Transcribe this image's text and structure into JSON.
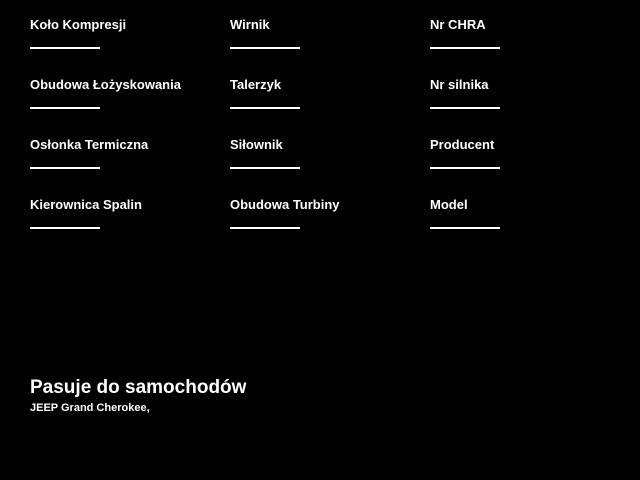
{
  "page": {
    "colors": {
      "background": "#000000",
      "text": "#ffffff",
      "underline": "#ffffff"
    }
  },
  "form": {
    "columns": [
      {
        "fields": [
          {
            "label": "Koło Kompresji",
            "value": ""
          },
          {
            "label": "Obudowa Łożyskowania",
            "value": ""
          },
          {
            "label": "Osłonka Termiczna",
            "value": ""
          },
          {
            "label": "Kierownica Spalin",
            "value": ""
          }
        ]
      },
      {
        "fields": [
          {
            "label": "Wirnik",
            "value": ""
          },
          {
            "label": "Talerzyk",
            "value": ""
          },
          {
            "label": "Siłownik",
            "value": ""
          },
          {
            "label": "Obudowa Turbiny",
            "value": ""
          }
        ]
      },
      {
        "fields": [
          {
            "label": "Nr CHRA",
            "value": ""
          },
          {
            "label": "Nr silnika",
            "value": ""
          },
          {
            "label": "Producent",
            "value": ""
          },
          {
            "label": "Model",
            "value": ""
          }
        ]
      }
    ]
  },
  "fits_section": {
    "title": "Pasuje do samochodów",
    "cars": "JEEP Grand Cherokee,"
  }
}
